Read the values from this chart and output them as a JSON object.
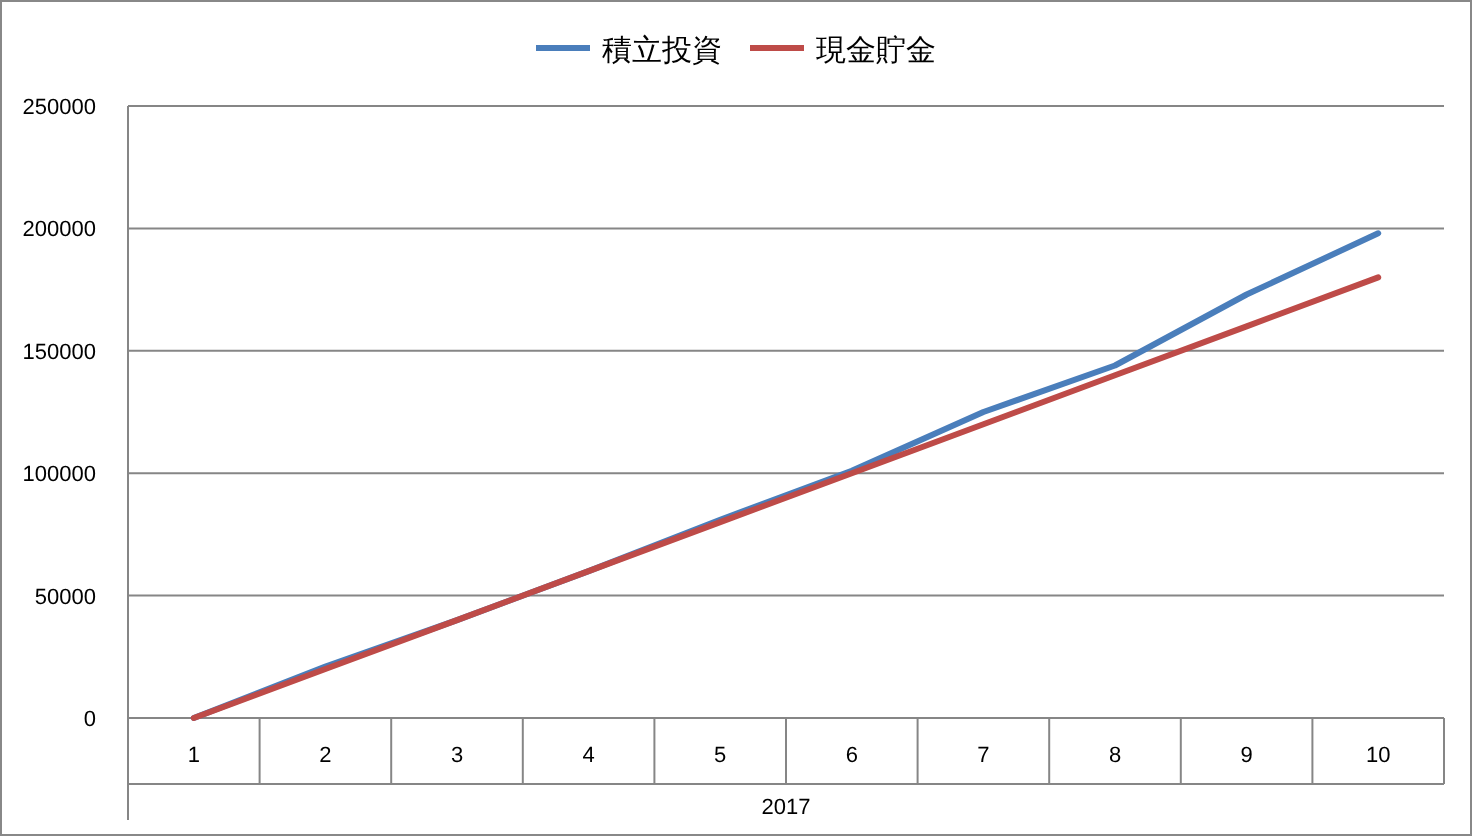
{
  "chart_data": {
    "type": "line",
    "xlabel": "2017",
    "categories": [
      "1",
      "2",
      "3",
      "4",
      "5",
      "6",
      "7",
      "8",
      "9",
      "10"
    ],
    "series": [
      {
        "name": "積立投資",
        "color": "#4a7ebb",
        "values": [
          0,
          21000,
          40000,
          60000,
          81000,
          101000,
          125000,
          144000,
          173000,
          198000
        ]
      },
      {
        "name": "現金貯金",
        "color": "#be4b48",
        "values": [
          0,
          20000,
          40000,
          60000,
          80000,
          100000,
          120000,
          140000,
          160000,
          180000
        ]
      }
    ],
    "ylim": [
      0,
      250000
    ],
    "yticks": [
      0,
      50000,
      100000,
      150000,
      200000,
      250000
    ],
    "grid": "y",
    "legend": "top",
    "marker": "none",
    "line_style": "solid"
  }
}
